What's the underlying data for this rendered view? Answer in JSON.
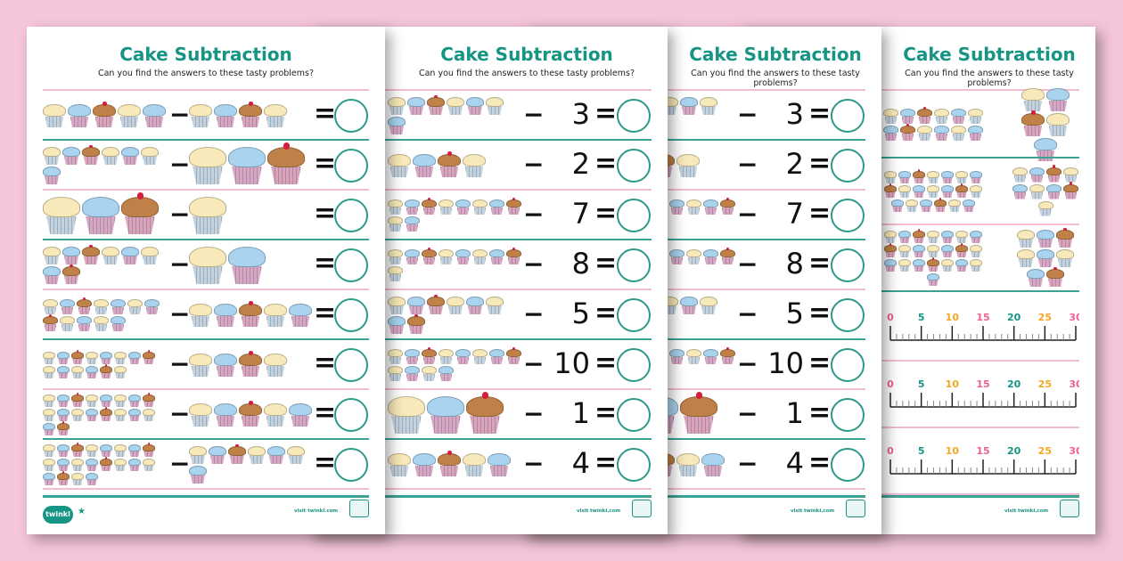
{
  "worksheet": {
    "title": "Cake Subtraction",
    "subtitle": "Can you find the answers to these tasty problems?",
    "minus": "−",
    "equals": "=",
    "footer": {
      "logo": "twinkl",
      "visit": "visit twinkl.com",
      "star_icon": "star-icon",
      "badge_icon": "quality-standard-badge-icon"
    }
  },
  "colors": {
    "accent": "#169484",
    "divider_pink": "#f4bcd0",
    "divider_teal": "#3aa394",
    "background": "#f5c6d9"
  },
  "page1_rows": [
    {
      "left": 5,
      "right": 4
    },
    {
      "left": 7,
      "right": 3
    },
    {
      "left": 3,
      "right": 1
    },
    {
      "left": 8,
      "right": 2
    },
    {
      "left": 12,
      "right": 5
    },
    {
      "left": 14,
      "right": 4
    },
    {
      "left": 18,
      "right": 5
    },
    {
      "left": 20,
      "right": 7
    }
  ],
  "page2_rows": [
    {
      "cupcakes": 7,
      "subtract": "3"
    },
    {
      "cupcakes": 4,
      "subtract": "2"
    },
    {
      "cupcakes": 10,
      "subtract": "7"
    },
    {
      "cupcakes": 9,
      "subtract": "8"
    },
    {
      "cupcakes": 8,
      "subtract": "5"
    },
    {
      "cupcakes": 12,
      "subtract": "10"
    },
    {
      "cupcakes": 3,
      "subtract": "1"
    },
    {
      "cupcakes": 5,
      "subtract": "4"
    }
  ],
  "page4_piles": [
    {
      "left": 12,
      "right": 5
    },
    {
      "left": 20,
      "right": 9
    },
    {
      "left": 22,
      "right": 8
    }
  ],
  "number_line": {
    "min": 0,
    "max": 30,
    "labels": [
      "0",
      "5",
      "10",
      "15",
      "20",
      "25",
      "30"
    ],
    "label_colors": [
      "#ec5f96",
      "#169484",
      "#f5a623"
    ]
  }
}
